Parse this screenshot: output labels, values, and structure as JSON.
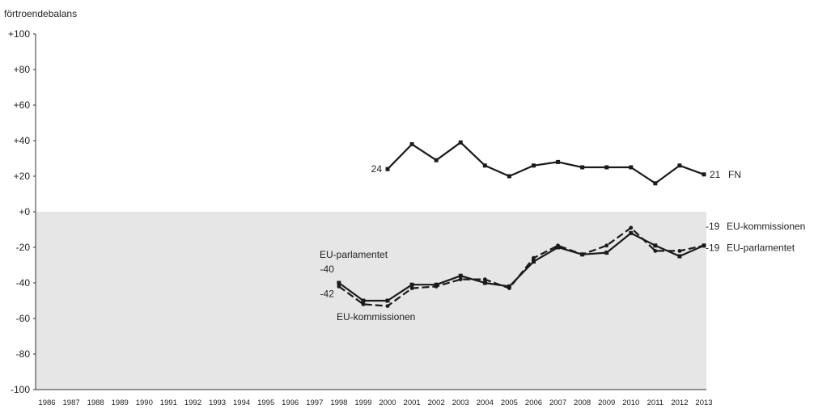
{
  "chart_data": {
    "type": "line",
    "title": "",
    "ylabel": "förtroendebalans",
    "xlabel": "",
    "ylim": [
      -100,
      100
    ],
    "yticks": [
      "+100",
      "+80",
      "+60",
      "+40",
      "+20",
      "+0",
      "-20",
      "-40",
      "-60",
      "-80",
      "-100"
    ],
    "x": [
      "1986",
      "1987",
      "1988",
      "1989",
      "1990",
      "1991",
      "1992",
      "1993",
      "1994",
      "1995",
      "1996",
      "1997",
      "1998",
      "1999",
      "2000",
      "2001",
      "2002",
      "2003",
      "2004",
      "2005",
      "2006",
      "2007",
      "2008",
      "2009",
      "2010",
      "2011",
      "2012",
      "2013"
    ],
    "grid": false,
    "negative_region_shaded": true,
    "colors": {
      "line": "#1a1a1a",
      "shade": "#e6e6e6"
    },
    "series": [
      {
        "name": "FN",
        "style": "solid",
        "x": [
          "2000",
          "2001",
          "2002",
          "2003",
          "2004",
          "2005",
          "2006",
          "2007",
          "2008",
          "2009",
          "2010",
          "2011",
          "2012",
          "2013"
        ],
        "values": [
          24,
          38,
          29,
          39,
          26,
          20,
          26,
          28,
          25,
          25,
          25,
          16,
          26,
          21
        ],
        "start_label": "24",
        "end_label": "21",
        "end_name_label": "FN"
      },
      {
        "name": "EU-parlamentet",
        "style": "solid",
        "x": [
          "1998",
          "1999",
          "2000",
          "2001",
          "2002",
          "2003",
          "2004",
          "2005",
          "2006",
          "2007",
          "2008",
          "2009",
          "2010",
          "2011",
          "2012",
          "2013"
        ],
        "values": [
          -40,
          -50,
          -50,
          -41,
          -41,
          -36,
          -40,
          -42,
          -28,
          -20,
          -24,
          -23,
          -12,
          -19,
          -25,
          -19
        ],
        "start_label": "-40",
        "end_label": "-19",
        "end_name_label": "EU-parlamentet",
        "start_name_label": "EU-parlamentet"
      },
      {
        "name": "EU-kommissionen",
        "style": "dashed",
        "x": [
          "1998",
          "1999",
          "2000",
          "2001",
          "2002",
          "2003",
          "2004",
          "2005",
          "2006",
          "2007",
          "2008",
          "2009",
          "2010",
          "2011",
          "2012",
          "2013"
        ],
        "values": [
          -42,
          -52,
          -53,
          -43,
          -42,
          -38,
          -38,
          -43,
          -26,
          -19,
          -24,
          -19,
          -9,
          -22,
          -22,
          -19
        ],
        "start_label": "-42",
        "end_label": "-19",
        "end_name_label": "EU-kommissionen",
        "start_name_label": "EU-kommissionen"
      }
    ]
  }
}
